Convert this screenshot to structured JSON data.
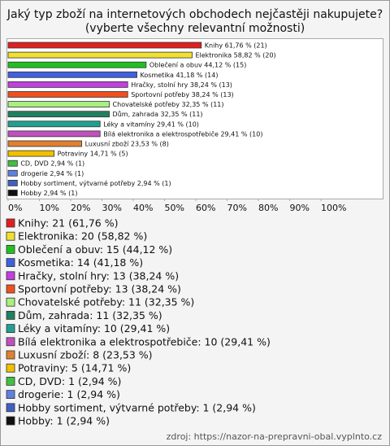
{
  "chart_data": {
    "type": "bar",
    "orientation": "horizontal",
    "title": "Jaký typ zboží na internetových obchodech nejčastěji nakupujete?",
    "subtitle": "(vyberte všechny relevantní možnosti)",
    "categories": [
      "Knihy",
      "Elektronika",
      "Oblečení a obuv",
      "Kosmetika",
      "Hračky, stolní hry",
      "Sportovní potřeby",
      "Chovatelské potřeby",
      "Dům, zahrada",
      "Léky a vitamíny",
      "Bílá elektronika a elektrospotřebiče",
      "Luxusní zboží",
      "Potraviny",
      "CD, DVD",
      "drogerie",
      "Hobby sortiment, výtvarné potřeby",
      "Hobby"
    ],
    "values": [
      61.76,
      58.82,
      44.12,
      41.18,
      38.24,
      38.24,
      32.35,
      32.35,
      29.41,
      29.41,
      23.53,
      14.71,
      2.94,
      2.94,
      2.94,
      2.94
    ],
    "value_labels": [
      "Knihy 61,76 % (21)",
      "Elektronika 58,82 % (20)",
      "Oblečení a obuv 44,12 % (15)",
      "Kosmetika 41,18 % (14)",
      "Hračky, stolní hry 38,24 % (13)",
      "Sportovní potřeby 38,24 % (13)",
      "Chovatelské potřeby 32,35 % (11)",
      "Dům, zahrada 32,35 % (11)",
      "Léky a vitamíny 29,41 % (10)",
      "Bílá elektronika a elektrospotřebiče 29,41 % (10)",
      "Luxusní zboží 23,53 % (8)",
      "Potraviny 14,71 % (5)",
      "CD, DVD 2,94 % (1)",
      "drogerie 2,94 % (1)",
      "Hobby sortiment, výtvarné potřeby 2,94 % (1)",
      "Hobby 2,94 % (1)"
    ],
    "legend_labels": [
      "Knihy: 21 (61,76 %)",
      "Elektronika: 20 (58,82 %)",
      "Oblečení a obuv: 15 (44,12 %)",
      "Kosmetika: 14 (41,18 %)",
      "Hračky, stolní hry: 13 (38,24 %)",
      "Sportovní potřeby: 13 (38,24 %)",
      "Chovatelské potřeby: 11 (32,35 %)",
      "Dům, zahrada: 11 (32,35 %)",
      "Léky a vitamíny: 10 (29,41 %)",
      "Bílá elektronika a elektrospotřebiče: 10 (29,41 %)",
      "Luxusní zboží: 8 (23,53 %)",
      "Potraviny: 5 (14,71 %)",
      "CD, DVD: 1 (2,94 %)",
      "drogerie: 1 (2,94 %)",
      "Hobby sortiment, výtvarné potřeby: 1 (2,94 %)",
      "Hobby: 1 (2,94 %)"
    ],
    "colors": [
      "#e02020",
      "#f0e030",
      "#20c020",
      "#4060e0",
      "#c040e0",
      "#f05020",
      "#a8f080",
      "#208060",
      "#20a090",
      "#c050c0",
      "#e08030",
      "#f0c000",
      "#40c040",
      "#6080e0",
      "#4060c0",
      "#101010"
    ],
    "xlim": [
      0,
      120
    ],
    "xticks": [
      {
        "value": 0,
        "label": "0%"
      },
      {
        "value": 10,
        "label": "10%"
      },
      {
        "value": 20,
        "label": "20%"
      },
      {
        "value": 30,
        "label": "30%"
      },
      {
        "value": 40,
        "label": "40%"
      },
      {
        "value": 50,
        "label": "50%"
      },
      {
        "value": 60,
        "label": "60%"
      },
      {
        "value": 70,
        "label": "70%"
      },
      {
        "value": 80,
        "label": "80%"
      },
      {
        "value": 90,
        "label": "90%"
      },
      {
        "value": 100,
        "label": "100%"
      }
    ],
    "source": "zdroj: https://nazor-na-prepravni-obal.vyplnto.cz"
  }
}
